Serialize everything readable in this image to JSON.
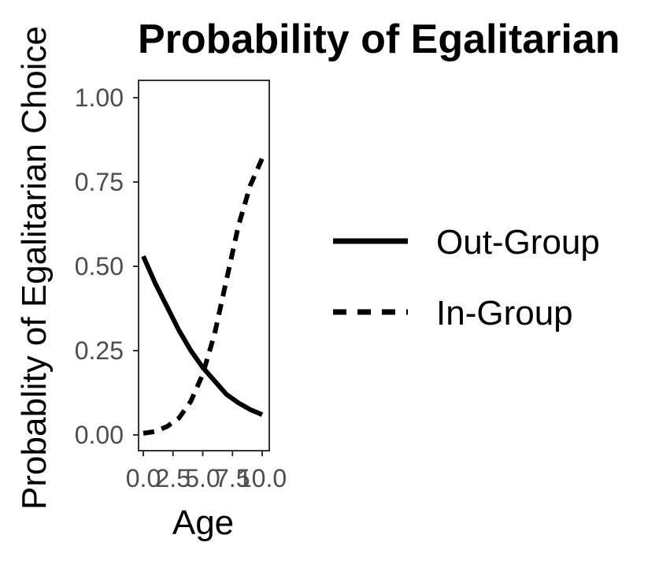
{
  "chart_data": {
    "type": "line",
    "title": "Probability of Egalitarian",
    "xlabel": "Age",
    "ylabel": "Probablity of Egalitarian Choice",
    "xlim": [
      0,
      10
    ],
    "ylim": [
      0,
      1
    ],
    "x_ticks": [
      "0.0",
      "2.5",
      "5.0",
      "7.5",
      "10.0"
    ],
    "y_ticks": [
      "0.00",
      "0.25",
      "0.50",
      "0.75",
      "1.00"
    ],
    "grid": false,
    "legend_position": "right",
    "colors": {
      "line": "#000000",
      "tick_text": "#4d4d4d",
      "frame": "#333333"
    },
    "series": [
      {
        "name": "Out-Group",
        "style": "solid",
        "x": [
          0,
          1,
          2,
          3,
          4,
          5,
          6,
          7,
          8,
          9,
          10
        ],
        "y": [
          0.53,
          0.45,
          0.38,
          0.31,
          0.25,
          0.2,
          0.16,
          0.12,
          0.095,
          0.075,
          0.06
        ]
      },
      {
        "name": "In-Group",
        "style": "dashed",
        "x": [
          0,
          1,
          2,
          3,
          4,
          5,
          6,
          7,
          8,
          9,
          10
        ],
        "y": [
          0.005,
          0.01,
          0.025,
          0.05,
          0.1,
          0.18,
          0.3,
          0.46,
          0.62,
          0.74,
          0.82
        ]
      }
    ]
  }
}
